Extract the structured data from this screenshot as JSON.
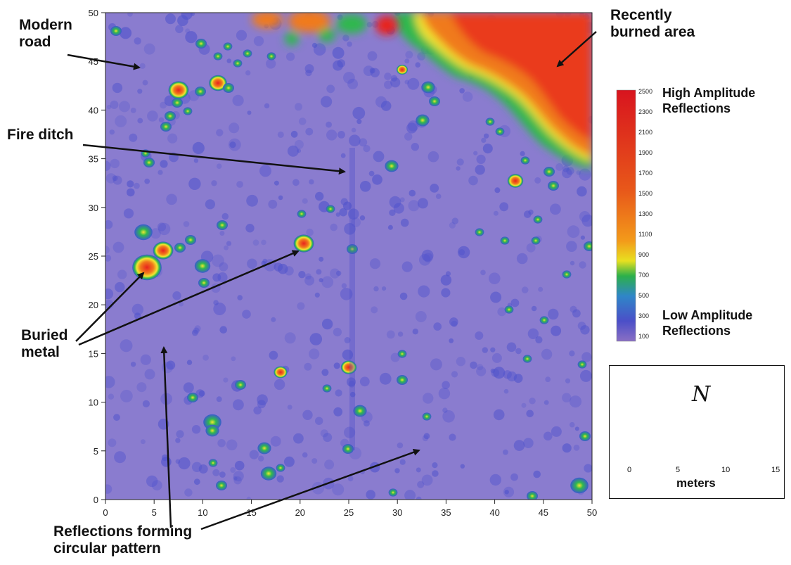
{
  "figure": {
    "axis_x_ticks": [
      "0",
      "5",
      "10",
      "15",
      "20",
      "25",
      "30",
      "35",
      "40",
      "45",
      "50"
    ],
    "axis_y_ticks": [
      "0",
      "5",
      "10",
      "15",
      "20",
      "25",
      "30",
      "35",
      "40",
      "45",
      "50"
    ],
    "annotations": {
      "modern_road": [
        "Modern",
        "road"
      ],
      "recently_burned": [
        "Recently",
        "burned area"
      ],
      "fire_ditch": "Fire ditch",
      "buried_metal": [
        "Buried",
        "metal"
      ],
      "reflections_circular": [
        "Reflections forming",
        "circular pattern"
      ]
    },
    "colorbar": {
      "ticks": [
        "2500",
        "2300",
        "2100",
        "1900",
        "1700",
        "1500",
        "1300",
        "1100",
        "900",
        "700",
        "500",
        "300",
        "100"
      ],
      "high_label": [
        "High Amplitude",
        "Reflections"
      ],
      "low_label": [
        "Low Amplitude",
        "Reflections"
      ],
      "colors": [
        "#8a6fc4",
        "#4b4fc8",
        "#2f86c8",
        "#2cb04a",
        "#e8e020",
        "#f39a1a",
        "#e23a1a",
        "#d8141e"
      ]
    },
    "scale_box": {
      "north_letter": "N",
      "scale_ticks": [
        "0",
        "5",
        "10",
        "15"
      ],
      "unit": "meters"
    },
    "map_colors": {
      "background": "#8a7ccf",
      "low_spot": "#4f58cf",
      "mid_spot": "#2fb84e",
      "high_spot": "#f06a1e",
      "peak": "#e21e1e",
      "halo": "#f2e630"
    }
  }
}
